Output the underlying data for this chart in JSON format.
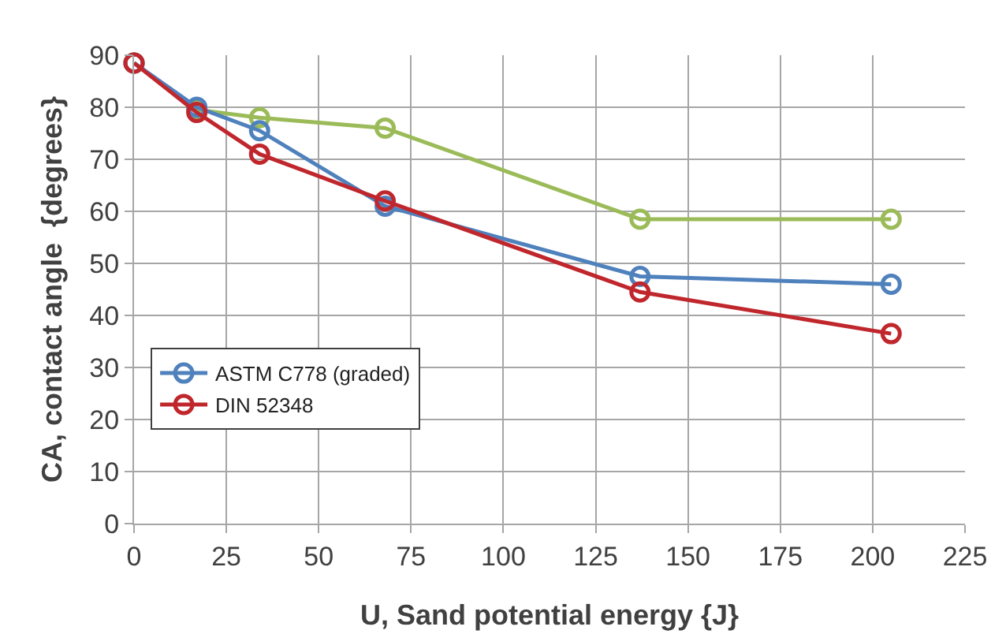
{
  "chart_data": {
    "type": "line",
    "xlabel": "U, Sand potential energy {J}",
    "ylabel": "CA, contact angle  {degrees}",
    "x": [
      0,
      17,
      34,
      68,
      137,
      205
    ],
    "series": [
      {
        "color": "#9bbb59",
        "values": [
          88.5,
          79.5,
          78,
          76,
          58.5,
          58.5
        ]
      },
      {
        "name": "ASTM C778 (graded)",
        "color": "#4f81bd",
        "values": [
          88.5,
          80,
          75.5,
          61,
          47.5,
          46
        ]
      },
      {
        "name": "DIN 52348",
        "color": "#c0272d",
        "values": [
          88.5,
          79,
          71,
          62,
          44.5,
          36.5
        ]
      }
    ],
    "xlim": [
      0,
      225
    ],
    "xticks": [
      0,
      25,
      50,
      75,
      100,
      125,
      150,
      175,
      200,
      225
    ],
    "ylim": [
      0,
      90
    ],
    "yticks": [
      0,
      10,
      20,
      30,
      40,
      50,
      60,
      70,
      80,
      90
    ],
    "grid": true,
    "legend": "bottom left",
    "marker": "circle",
    "line_style": "solid"
  }
}
